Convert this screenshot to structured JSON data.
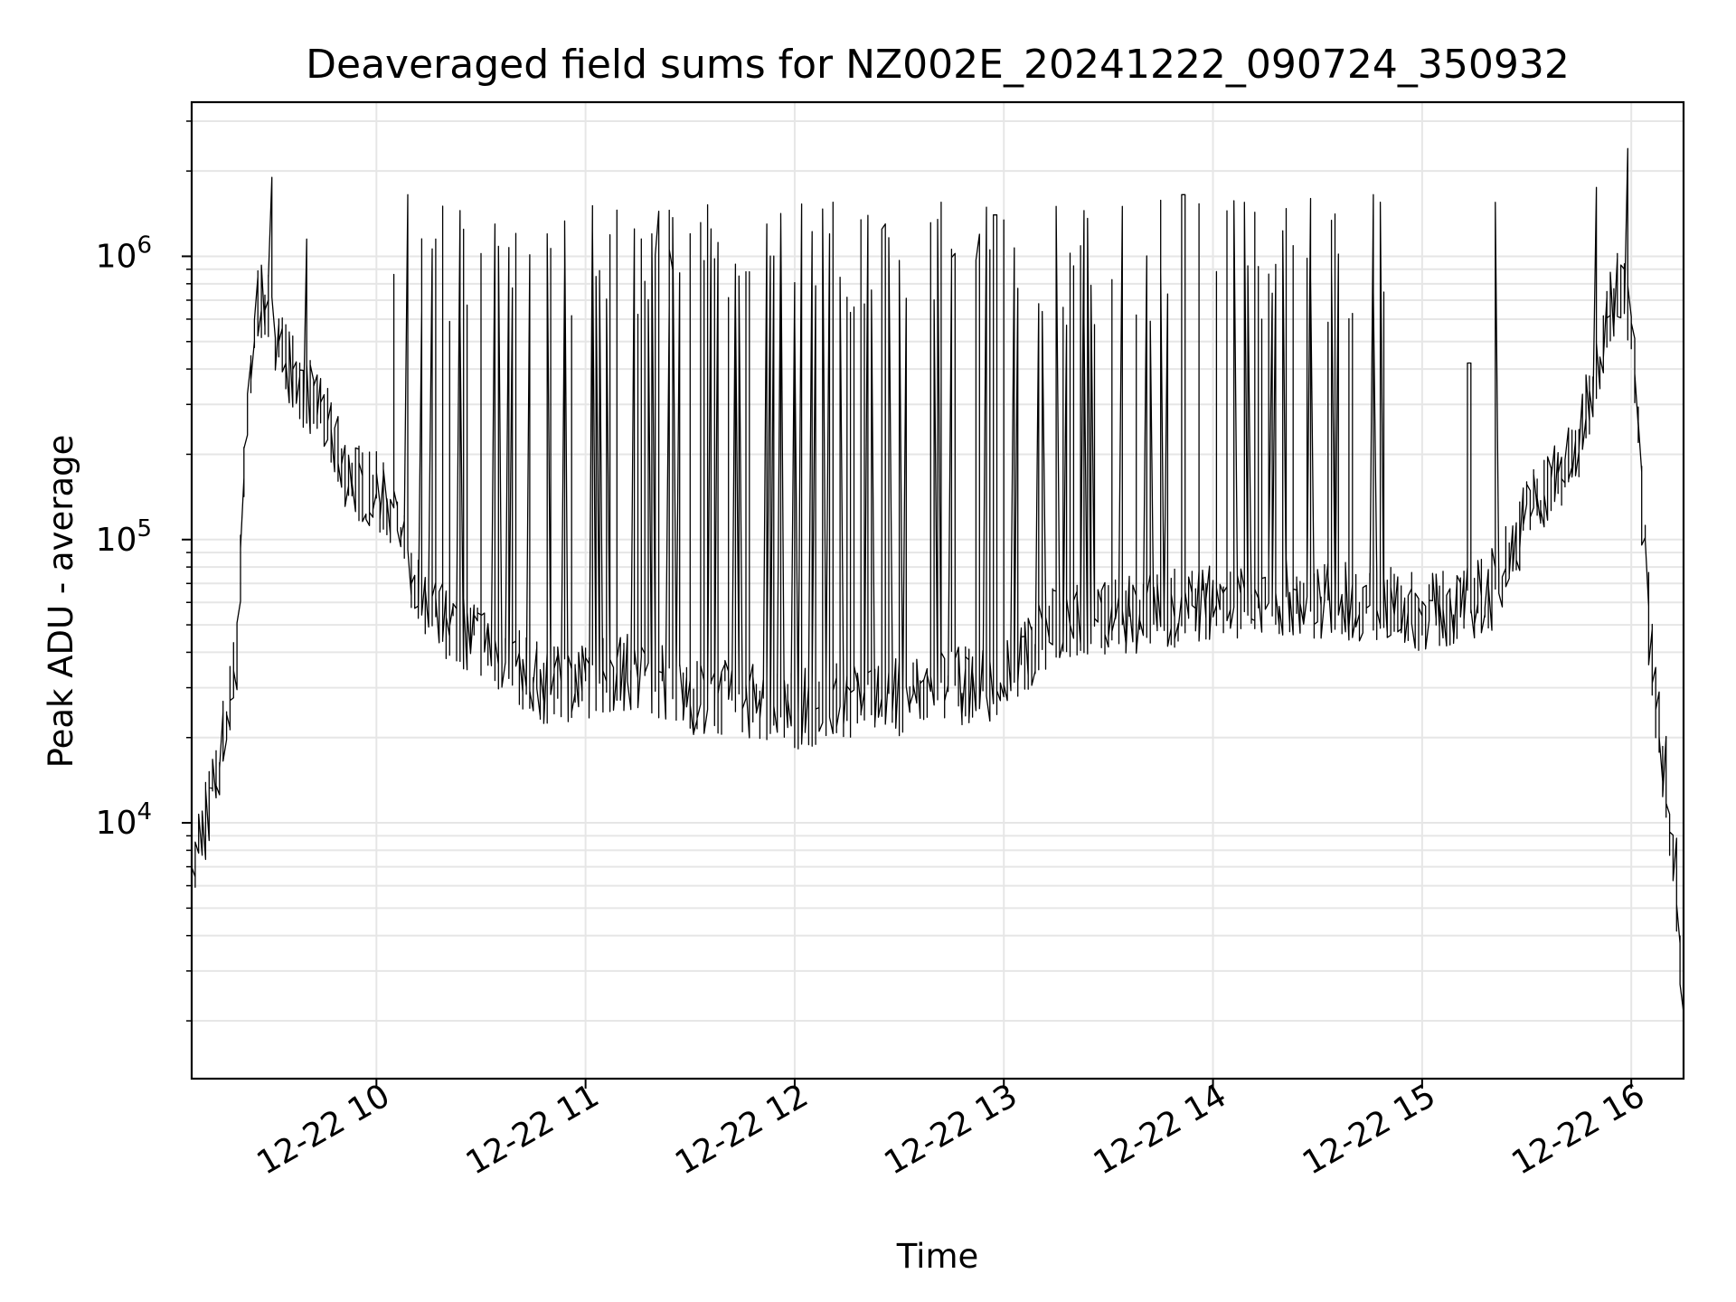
{
  "chart_data": {
    "type": "line",
    "title": "Deaveraged field sums for NZ002E_20241222_090724_350932",
    "xlabel": "Time",
    "ylabel": "Peak ADU - average",
    "x_scale": "time",
    "y_scale": "log",
    "xlim": [
      "2024-12-22 09:07",
      "2024-12-22 16:15"
    ],
    "ylim": [
      1250,
      3500000
    ],
    "x_ticks": [
      "12-22 10",
      "12-22 11",
      "12-22 12",
      "12-22 13",
      "12-22 14",
      "12-22 15",
      "12-22 16"
    ],
    "y_ticks": [
      {
        "value": 10000,
        "base": "10",
        "exp": "4"
      },
      {
        "value": 100000,
        "base": "10",
        "exp": "5"
      },
      {
        "value": 1000000,
        "base": "10",
        "exp": "6"
      }
    ],
    "grid": true,
    "line_color": "#000000",
    "series": [
      {
        "x": [
          "2024-12-22 09:07",
          "2024-12-22 09:10",
          "2024-12-22 09:14",
          "2024-12-22 09:17",
          "2024-12-22 09:20",
          "2024-12-22 09:23",
          "2024-12-22 09:26",
          "2024-12-22 09:30",
          "2024-12-22 09:35",
          "2024-12-22 09:40",
          "2024-12-22 09:45",
          "2024-12-22 09:50",
          "2024-12-22 09:55",
          "2024-12-22 10:00",
          "2024-12-22 10:05",
          "2024-12-22 10:10",
          "2024-12-22 10:20",
          "2024-12-22 10:30",
          "2024-12-22 10:40",
          "2024-12-22 10:50",
          "2024-12-22 11:00",
          "2024-12-22 11:15",
          "2024-12-22 11:30",
          "2024-12-22 11:45",
          "2024-12-22 12:00",
          "2024-12-22 12:15",
          "2024-12-22 12:30",
          "2024-12-22 12:45",
          "2024-12-22 13:00",
          "2024-12-22 13:15",
          "2024-12-22 13:30",
          "2024-12-22 13:45",
          "2024-12-22 14:00",
          "2024-12-22 14:15",
          "2024-12-22 14:30",
          "2024-12-22 14:45",
          "2024-12-22 15:00",
          "2024-12-22 15:10",
          "2024-12-22 15:20",
          "2024-12-22 15:30",
          "2024-12-22 15:35",
          "2024-12-22 15:40",
          "2024-12-22 15:45",
          "2024-12-22 15:50",
          "2024-12-22 15:55",
          "2024-12-22 15:58",
          "2024-12-22 16:01",
          "2024-12-22 16:04",
          "2024-12-22 16:07",
          "2024-12-22 16:10",
          "2024-12-22 16:13",
          "2024-12-22 16:15"
        ],
        "y": [
          5000,
          9000,
          13000,
          22000,
          35000,
          200000,
          700000,
          650000,
          420000,
          330000,
          280000,
          190000,
          160000,
          150000,
          125000,
          75000,
          52000,
          45000,
          36000,
          30000,
          32000,
          35000,
          28000,
          27000,
          25000,
          27000,
          28000,
          30000,
          32000,
          50000,
          53000,
          56000,
          60000,
          62000,
          62000,
          60000,
          55000,
          58000,
          65000,
          120000,
          150000,
          170000,
          200000,
          400000,
          700000,
          850000,
          450000,
          120000,
          30000,
          15000,
          7000,
          2000
        ]
      }
    ],
    "spikes": [
      {
        "x": "2024-12-22 09:30",
        "y": 1900000
      },
      {
        "x": "2024-12-22 09:40",
        "y": 1150000
      },
      {
        "x": "2024-12-22 10:09",
        "y": 1650000
      },
      {
        "x": "2024-12-22 10:24",
        "y": 1450000
      },
      {
        "x": "2024-12-22 10:34",
        "y": 1300000
      },
      {
        "x": "2024-12-22 10:50",
        "y": 1200000
      },
      {
        "x": "2024-12-22 11:04",
        "y": 1250000
      },
      {
        "x": "2024-12-22 11:20",
        "y": 1200000
      },
      {
        "x": "2024-12-22 11:36",
        "y": 1250000
      },
      {
        "x": "2024-12-22 11:52",
        "y": 1300000
      },
      {
        "x": "2024-12-22 12:10",
        "y": 1200000
      },
      {
        "x": "2024-12-22 12:26",
        "y": 1300000
      },
      {
        "x": "2024-12-22 12:42",
        "y": 1350000
      },
      {
        "x": "2024-12-22 12:58",
        "y": 1400000
      },
      {
        "x": "2024-12-22 13:16",
        "y": 1500000
      },
      {
        "x": "2024-12-22 13:34",
        "y": 1500000
      },
      {
        "x": "2024-12-22 13:52",
        "y": 1650000
      },
      {
        "x": "2024-12-22 14:10",
        "y": 1550000
      },
      {
        "x": "2024-12-22 14:28",
        "y": 1600000
      },
      {
        "x": "2024-12-22 14:46",
        "y": 1650000
      },
      {
        "x": "2024-12-22 15:14",
        "y": 420000
      },
      {
        "x": "2024-12-22 15:22",
        "y": 1550000
      },
      {
        "x": "2024-12-22 15:50",
        "y": 1750000
      },
      {
        "x": "2024-12-22 15:59",
        "y": 2400000
      }
    ]
  }
}
